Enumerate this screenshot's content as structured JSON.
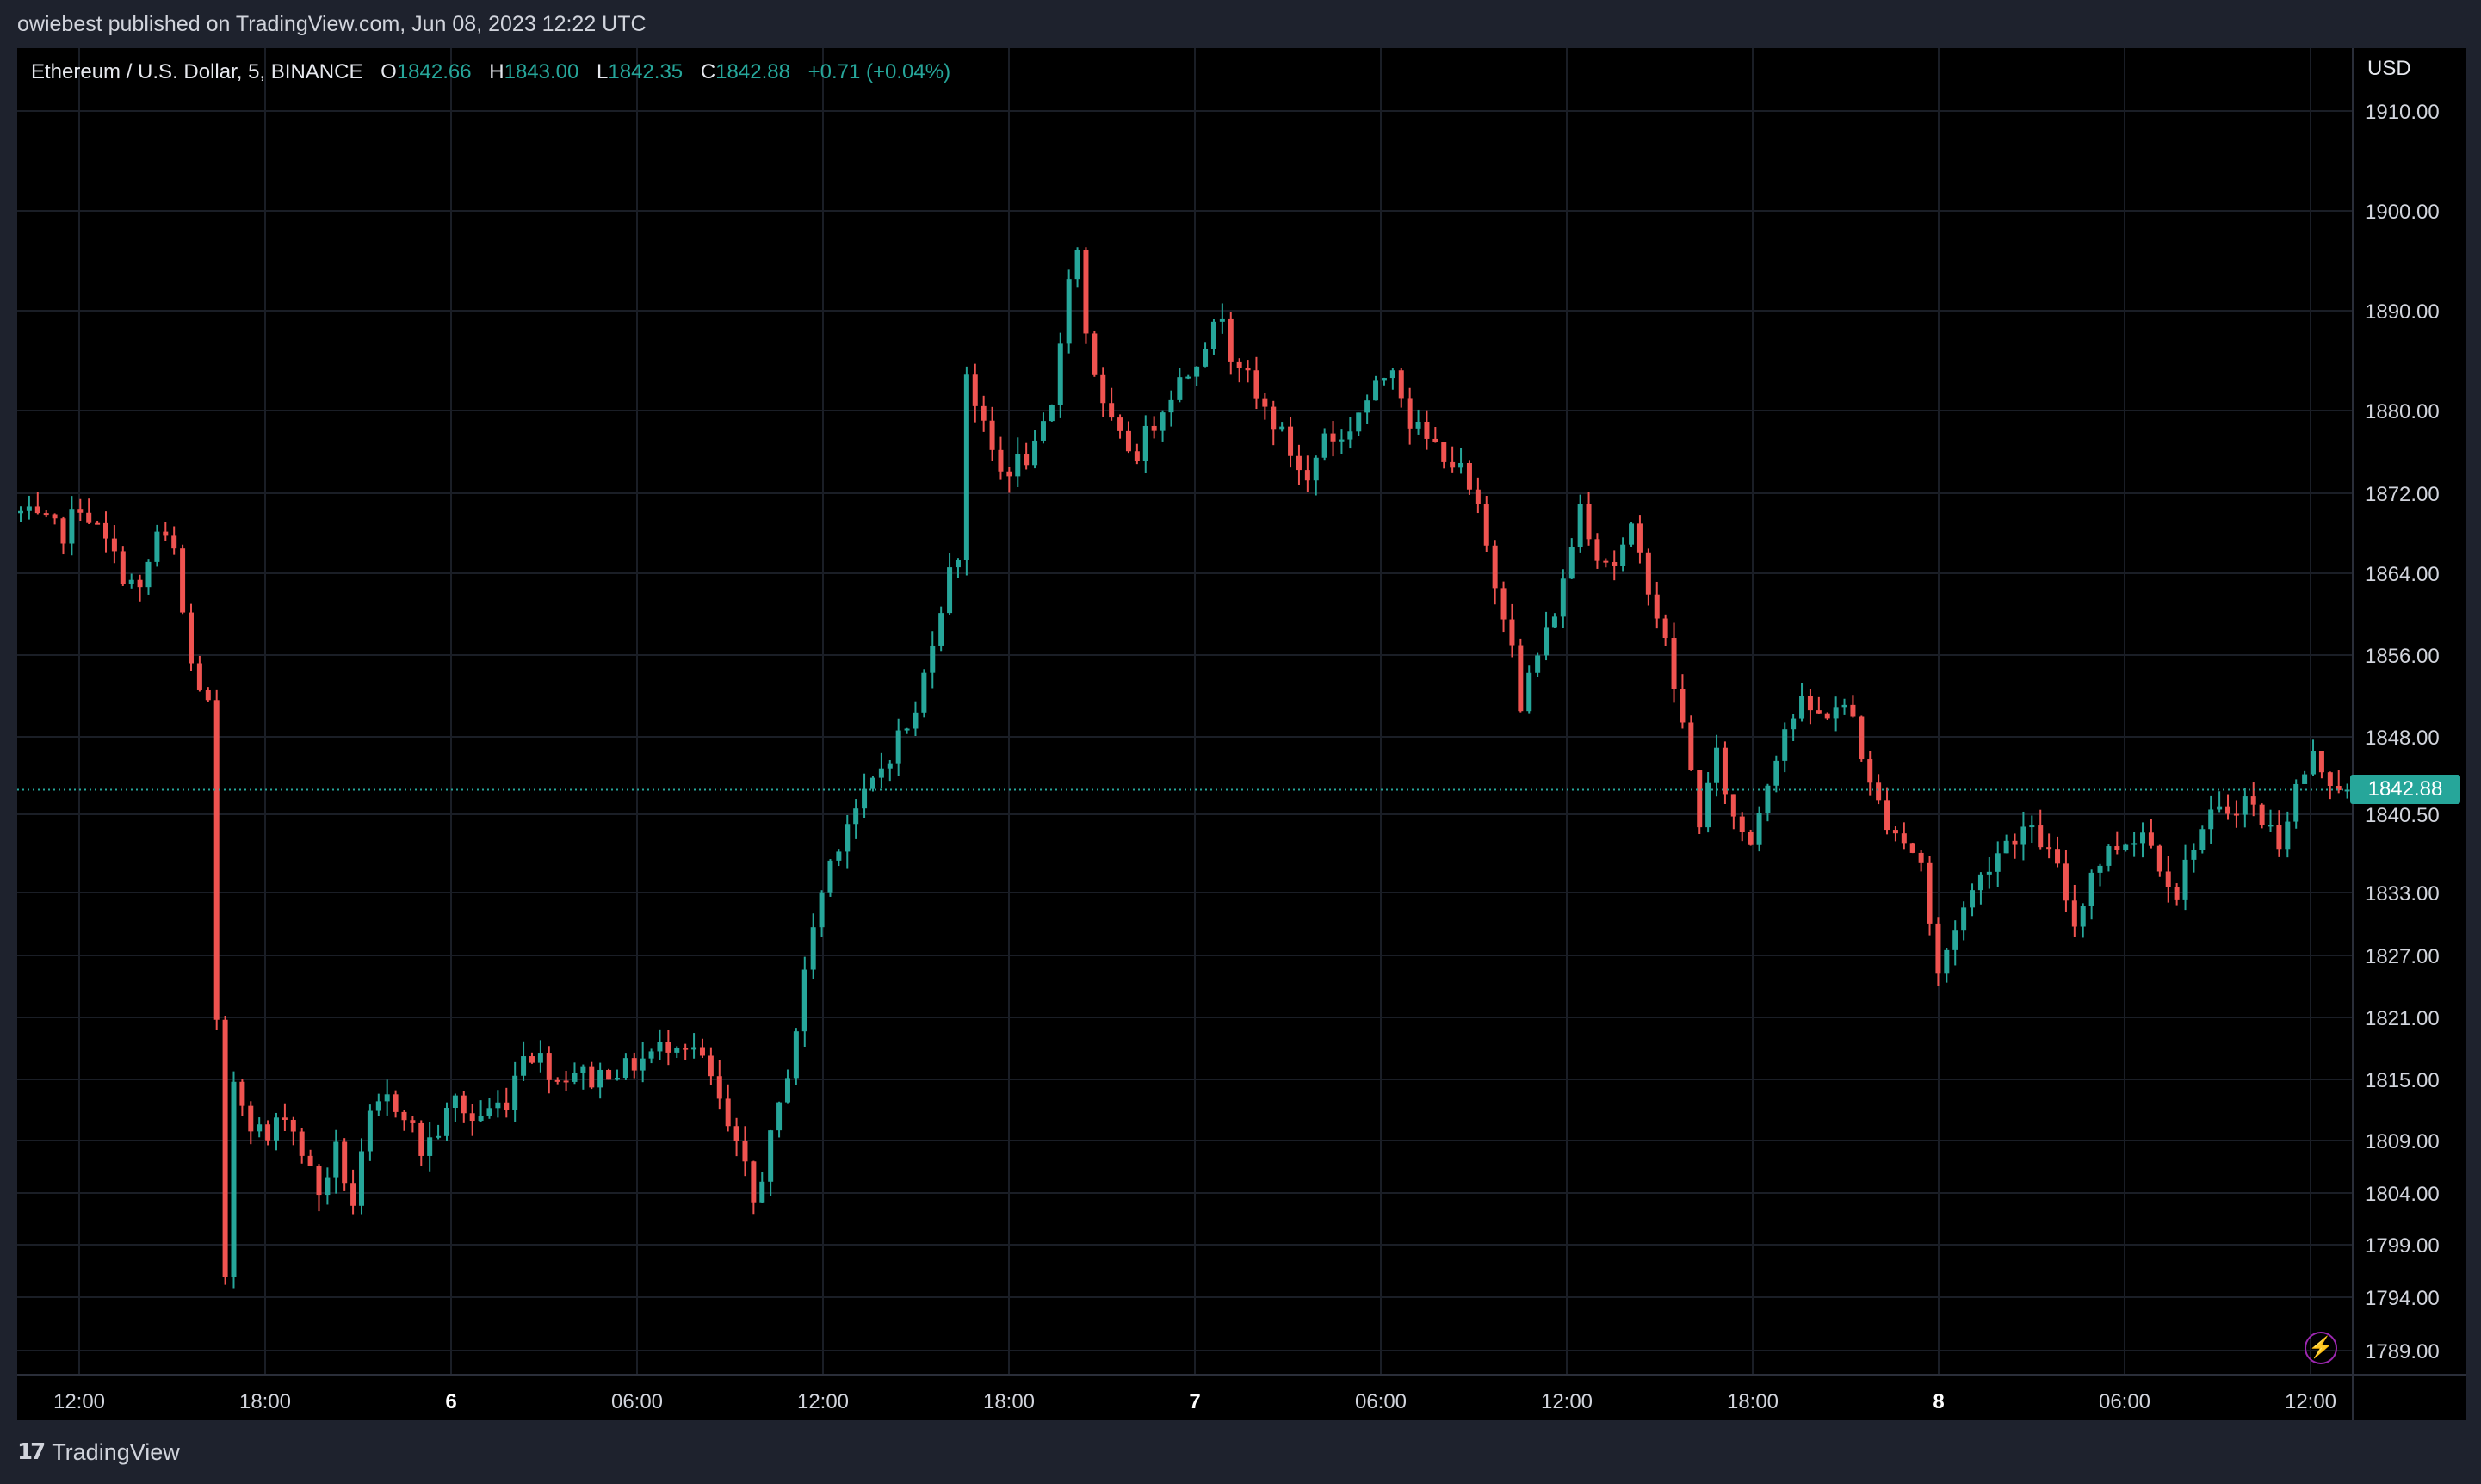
{
  "header": {
    "publish_text": "owiebest published on TradingView.com, Jun 08, 2023 12:22 UTC"
  },
  "legend": {
    "symbol": "Ethereum / U.S. Dollar, 5, BINANCE",
    "open_label": "O",
    "open": "1842.66",
    "high_label": "H",
    "high": "1843.00",
    "low_label": "L",
    "low": "1842.35",
    "close_label": "C",
    "close": "1842.88",
    "change": "+0.71 (+0.04%)"
  },
  "price_axis": {
    "currency": "USD",
    "last_price": "1842.88"
  },
  "footer": {
    "brand": "TradingView"
  },
  "colors": {
    "up": "#26a69a",
    "down": "#ef5350",
    "background": "#000000",
    "frame": "#1e222d",
    "grid": "#1a1e26"
  },
  "icons": {
    "logo": "tradingview-logo-icon",
    "alert": "lightning-bolt-icon"
  },
  "chart_data": {
    "type": "candlestick",
    "timeframe": "5",
    "y_ticks": [
      {
        "value": 1910,
        "label": "1910.00"
      },
      {
        "value": 1900,
        "label": "1900.00"
      },
      {
        "value": 1890,
        "label": "1890.00"
      },
      {
        "value": 1880,
        "label": "1880.00"
      },
      {
        "value": 1872,
        "label": "1872.00"
      },
      {
        "value": 1864,
        "label": "1864.00"
      },
      {
        "value": 1856,
        "label": "1856.00"
      },
      {
        "value": 1848,
        "label": "1848.00"
      },
      {
        "value": 1840.5,
        "label": "1840.50"
      },
      {
        "value": 1833,
        "label": "1833.00"
      },
      {
        "value": 1827,
        "label": "1827.00"
      },
      {
        "value": 1821,
        "label": "1821.00"
      },
      {
        "value": 1815,
        "label": "1815.00"
      },
      {
        "value": 1809,
        "label": "1809.00"
      },
      {
        "value": 1804,
        "label": "1804.00"
      },
      {
        "value": 1799,
        "label": "1799.00"
      },
      {
        "value": 1794,
        "label": "1794.00"
      },
      {
        "value": 1789,
        "label": "1789.00"
      }
    ],
    "x_ticks": [
      {
        "label": "12:00",
        "bold": false
      },
      {
        "label": "18:00",
        "bold": false
      },
      {
        "label": "6",
        "bold": true
      },
      {
        "label": "06:00",
        "bold": false
      },
      {
        "label": "12:00",
        "bold": false
      },
      {
        "label": "18:00",
        "bold": false
      },
      {
        "label": "7",
        "bold": true
      },
      {
        "label": "06:00",
        "bold": false
      },
      {
        "label": "12:00",
        "bold": false
      },
      {
        "label": "18:00",
        "bold": false
      },
      {
        "label": "8",
        "bold": true
      },
      {
        "label": "06:00",
        "bold": false
      },
      {
        "label": "12:00",
        "bold": false
      }
    ],
    "last_price": 1842.88,
    "price_path": [
      [
        0,
        1870
      ],
      [
        5,
        1868
      ],
      [
        7,
        1871
      ],
      [
        10,
        1867
      ],
      [
        12,
        1864
      ],
      [
        14,
        1862
      ],
      [
        16,
        1868
      ],
      [
        18,
        1866
      ],
      [
        19,
        1860
      ],
      [
        20,
        1855
      ],
      [
        22,
        1851
      ],
      [
        23,
        1820
      ],
      [
        24,
        1795
      ],
      [
        25,
        1815
      ],
      [
        27,
        1811
      ],
      [
        29,
        1809
      ],
      [
        31,
        1812
      ],
      [
        33,
        1808
      ],
      [
        35,
        1804
      ],
      [
        37,
        1808
      ],
      [
        39,
        1803
      ],
      [
        41,
        1811
      ],
      [
        43,
        1813
      ],
      [
        45,
        1812
      ],
      [
        47,
        1808
      ],
      [
        49,
        1810
      ],
      [
        51,
        1813
      ],
      [
        53,
        1811
      ],
      [
        55,
        1812
      ],
      [
        57,
        1813
      ],
      [
        59,
        1818
      ],
      [
        61,
        1817
      ],
      [
        63,
        1815
      ],
      [
        65,
        1816
      ],
      [
        67,
        1815
      ],
      [
        69,
        1816
      ],
      [
        71,
        1816
      ],
      [
        73,
        1817
      ],
      [
        75,
        1818
      ],
      [
        77,
        1819
      ],
      [
        79,
        1818
      ],
      [
        81,
        1815
      ],
      [
        83,
        1810
      ],
      [
        85,
        1806
      ],
      [
        86,
        1803
      ],
      [
        87,
        1806
      ],
      [
        89,
        1812
      ],
      [
        91,
        1820
      ],
      [
        93,
        1830
      ],
      [
        95,
        1836
      ],
      [
        97,
        1840
      ],
      [
        99,
        1842
      ],
      [
        101,
        1845
      ],
      [
        103,
        1848
      ],
      [
        105,
        1850
      ],
      [
        107,
        1858
      ],
      [
        109,
        1864
      ],
      [
        110,
        1866
      ],
      [
        111,
        1884
      ],
      [
        113,
        1878
      ],
      [
        115,
        1874
      ],
      [
        117,
        1875
      ],
      [
        119,
        1876
      ],
      [
        121,
        1880
      ],
      [
        123,
        1894
      ],
      [
        124,
        1896
      ],
      [
        125,
        1888
      ],
      [
        127,
        1880
      ],
      [
        129,
        1877
      ],
      [
        131,
        1876
      ],
      [
        133,
        1879
      ],
      [
        135,
        1882
      ],
      [
        137,
        1884
      ],
      [
        139,
        1887
      ],
      [
        140,
        1888
      ],
      [
        141,
        1890
      ],
      [
        142,
        1886
      ],
      [
        143,
        1885
      ],
      [
        145,
        1881
      ],
      [
        147,
        1879
      ],
      [
        149,
        1876
      ],
      [
        151,
        1873
      ],
      [
        153,
        1878
      ],
      [
        155,
        1877
      ],
      [
        157,
        1880
      ],
      [
        159,
        1882
      ],
      [
        161,
        1885
      ],
      [
        163,
        1879
      ],
      [
        165,
        1877
      ],
      [
        167,
        1876
      ],
      [
        169,
        1874
      ],
      [
        171,
        1870
      ],
      [
        173,
        1863
      ],
      [
        175,
        1858
      ],
      [
        176,
        1850
      ],
      [
        177,
        1854
      ],
      [
        179,
        1858
      ],
      [
        181,
        1863
      ],
      [
        183,
        1871
      ],
      [
        185,
        1866
      ],
      [
        187,
        1865
      ],
      [
        189,
        1868
      ],
      [
        191,
        1863
      ],
      [
        193,
        1857
      ],
      [
        195,
        1849
      ],
      [
        197,
        1840
      ],
      [
        199,
        1846
      ],
      [
        201,
        1840
      ],
      [
        203,
        1838
      ],
      [
        205,
        1844
      ],
      [
        207,
        1849
      ],
      [
        209,
        1851
      ],
      [
        211,
        1850
      ],
      [
        213,
        1851
      ],
      [
        215,
        1850
      ],
      [
        217,
        1843
      ],
      [
        219,
        1840
      ],
      [
        221,
        1838
      ],
      [
        223,
        1836
      ],
      [
        224,
        1830
      ],
      [
        225,
        1825
      ],
      [
        227,
        1830
      ],
      [
        229,
        1833
      ],
      [
        231,
        1836
      ],
      [
        233,
        1838
      ],
      [
        235,
        1839
      ],
      [
        237,
        1838
      ],
      [
        239,
        1835
      ],
      [
        241,
        1830
      ],
      [
        243,
        1835
      ],
      [
        245,
        1837
      ],
      [
        247,
        1838
      ],
      [
        249,
        1839
      ],
      [
        251,
        1836
      ],
      [
        253,
        1833
      ],
      [
        255,
        1838
      ],
      [
        257,
        1840
      ],
      [
        259,
        1841
      ],
      [
        261,
        1842
      ],
      [
        263,
        1840
      ],
      [
        265,
        1838
      ],
      [
        267,
        1843
      ],
      [
        269,
        1846
      ],
      [
        271,
        1844
      ],
      [
        273,
        1842.88
      ]
    ]
  }
}
